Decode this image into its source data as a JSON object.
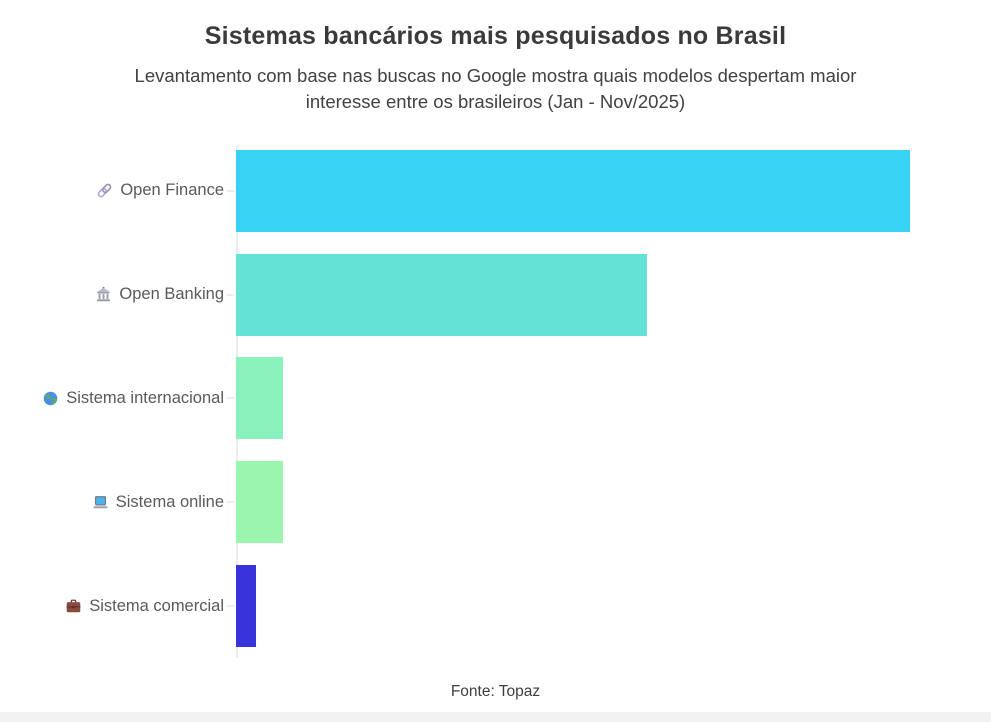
{
  "header": {
    "title": "Sistemas bancários mais pesquisados no Brasil",
    "subtitle_line1": "Levantamento com base nas buscas no Google mostra quais modelos despertam maior",
    "subtitle_line2": "interesse entre os brasileiros (Jan - Nov/2025)"
  },
  "footer": {
    "source": "Fonte: Topaz"
  },
  "chart_data": {
    "type": "bar",
    "orientation": "horizontal",
    "title": "Sistemas bancários mais pesquisados no Brasil",
    "subtitle": "Levantamento com base nas buscas no Google mostra quais modelos despertam maior interesse entre os brasileiros (Jan - Nov/2025)",
    "categories": [
      "Open Finance",
      "Open Banking",
      "Sistema internacional",
      "Sistema online",
      "Sistema comercial"
    ],
    "values": [
      100,
      61,
      7,
      7,
      3
    ],
    "xlim": [
      0,
      100
    ],
    "grid": "off",
    "legend": "none",
    "value_axis_labels": "hidden",
    "bar_colors": [
      "#38d3f4",
      "#63e2d5",
      "#89f1bc",
      "#9cf5ae",
      "#3933dc"
    ],
    "icons": [
      "link-icon",
      "bank-icon",
      "globe-icon",
      "laptop-icon",
      "briefcase-icon"
    ],
    "axis_color": "#ececec",
    "source": "Fonte: Topaz"
  }
}
